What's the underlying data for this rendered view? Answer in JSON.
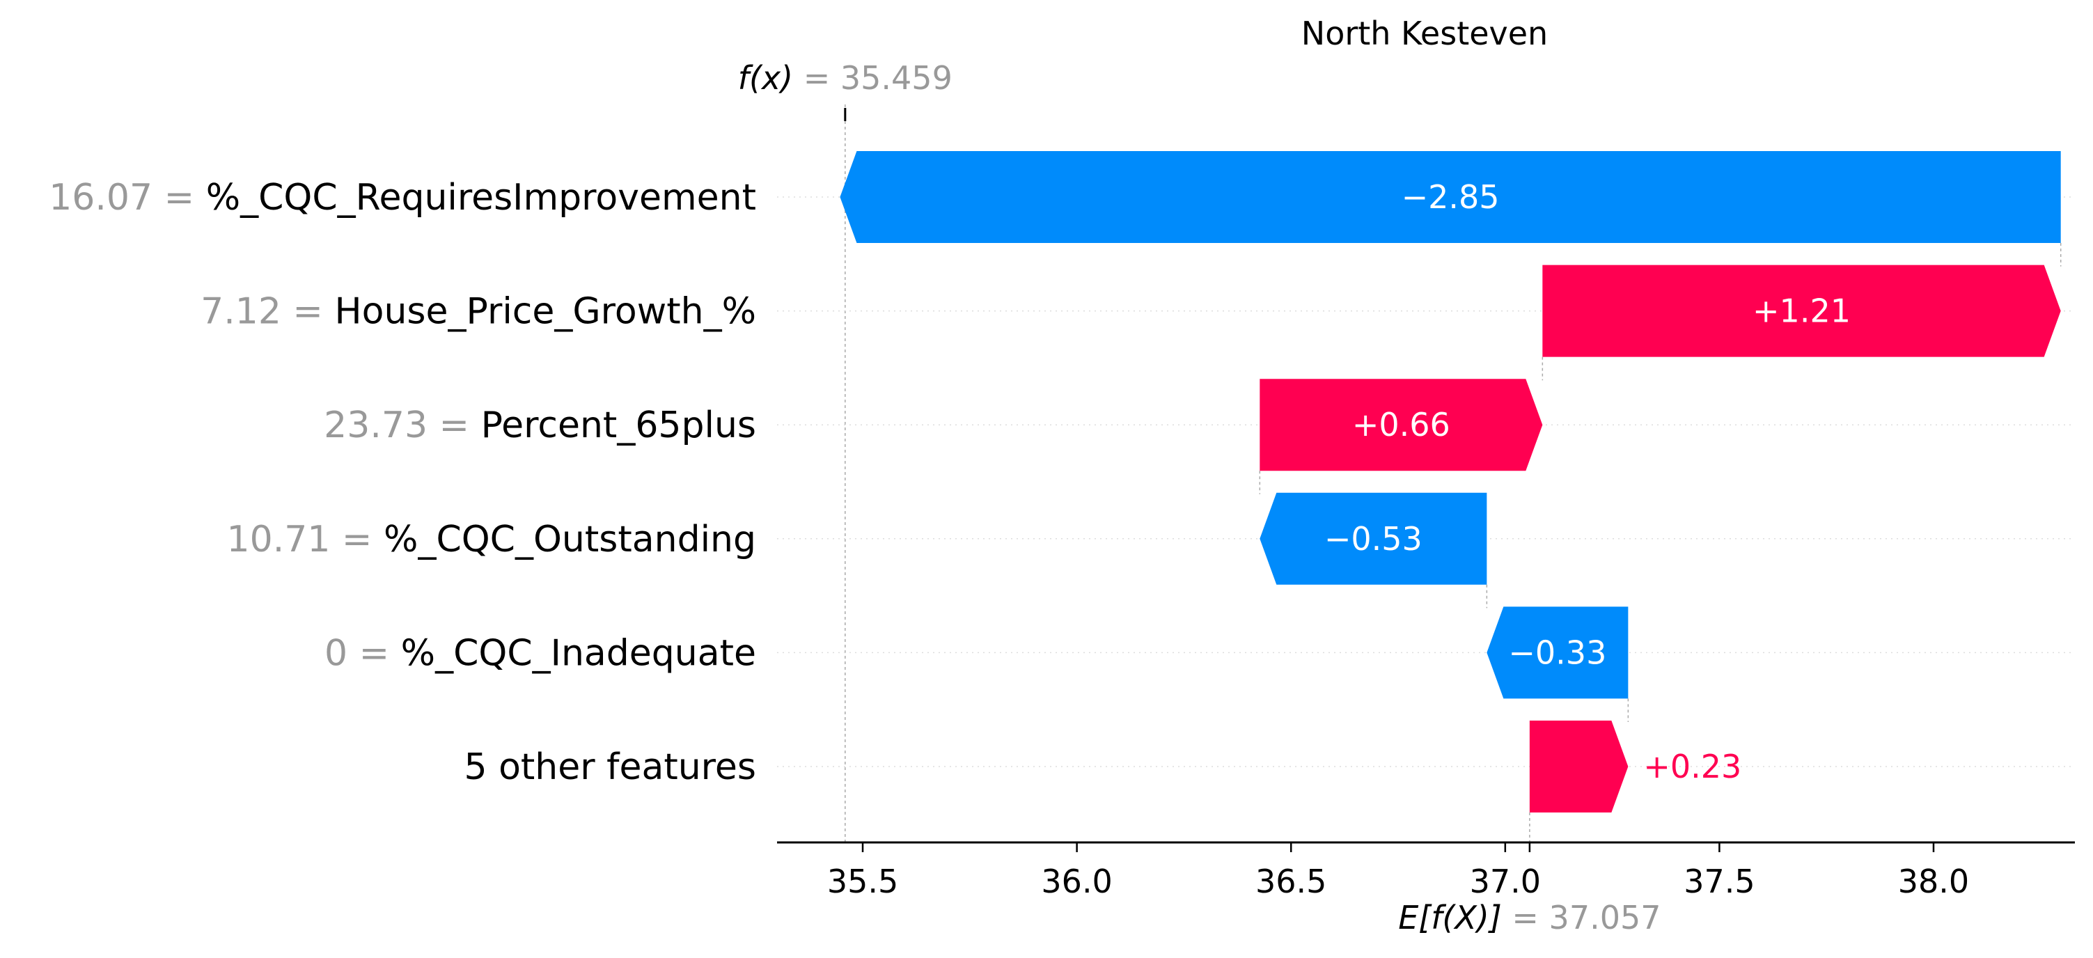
{
  "chart_data": {
    "type": "waterfall",
    "title": "North Kesteven",
    "fx": {
      "label_prefix": "f(x)",
      "sep": "=",
      "value_text": "35.459",
      "value": 35.459
    },
    "base": {
      "label_prefix": "E[f(X)]",
      "sep": "=",
      "value_text": "37.057",
      "value": 37.057
    },
    "features": [
      {
        "feature_value": "16.07",
        "name": "%_CQC_RequiresImprovement",
        "contribution": -2.85,
        "label": "−2.85"
      },
      {
        "feature_value": "7.12",
        "name": "House_Price_Growth_%",
        "contribution": 1.21,
        "label": "+1.21"
      },
      {
        "feature_value": "23.73",
        "name": "Percent_65plus",
        "contribution": 0.66,
        "label": "+0.66"
      },
      {
        "feature_value": "10.71",
        "name": "%_CQC_Outstanding",
        "contribution": -0.53,
        "label": "−0.53"
      },
      {
        "feature_value": "0",
        "name": "%_CQC_Inadequate",
        "contribution": -0.33,
        "label": "−0.33"
      },
      {
        "feature_value": "",
        "name": "5 other features",
        "contribution": 0.23,
        "label": "+0.23"
      }
    ],
    "xticks": [
      "35.5",
      "36.0",
      "36.5",
      "37.0",
      "37.5",
      "38.0"
    ],
    "xlim": [
      35.3,
      38.33
    ],
    "colors": {
      "positive": "#ff0051",
      "negative": "#008bfb",
      "axis": "#000000",
      "muted": "#999999",
      "grid": "#cccccc"
    }
  }
}
